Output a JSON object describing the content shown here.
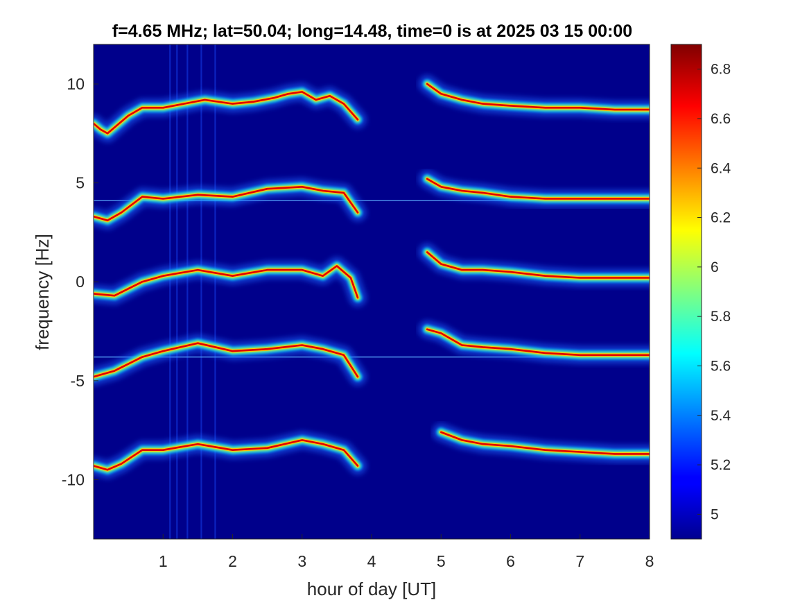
{
  "chart_data": {
    "type": "heatmap",
    "title": "f=4.65 MHz;  lat=50.04; long=14.48, time=0 is at 2025 03 15 00:00",
    "xlabel": "hour of day [UT]",
    "ylabel": "frequency [Hz]",
    "xlim": [
      0,
      8
    ],
    "ylim": [
      -13,
      12
    ],
    "x_ticks": [
      1,
      2,
      3,
      4,
      5,
      6,
      7,
      8
    ],
    "x_tick_labels": [
      "1",
      "2",
      "3",
      "4",
      "5",
      "6",
      "7",
      "8"
    ],
    "y_ticks": [
      -10,
      -5,
      0,
      5,
      10
    ],
    "y_tick_labels": [
      "-10",
      "-5",
      "0",
      "5",
      "10"
    ],
    "colorbar": {
      "colormap": "jet",
      "clim": [
        4.9,
        6.9
      ],
      "ticks": [
        5,
        5.2,
        5.4,
        5.6,
        5.8,
        6,
        6.2,
        6.4,
        6.6,
        6.8
      ],
      "tick_labels": [
        "5",
        "5.2",
        "5.4",
        "5.6",
        "5.8",
        "6",
        "6.2",
        "6.4",
        "6.6",
        "6.8"
      ]
    },
    "background_color": "#00008b",
    "traces": [
      {
        "segments": [
          {
            "x": [
              0,
              0.1,
              0.2,
              0.3,
              0.5,
              0.7,
              1.0,
              1.3,
              1.6,
              2.0,
              2.3,
              2.6,
              2.8,
              3.0,
              3.2,
              3.4,
              3.6,
              3.8
            ],
            "y": [
              8.0,
              7.7,
              7.5,
              7.8,
              8.4,
              8.8,
              8.8,
              9.0,
              9.2,
              9.0,
              9.1,
              9.3,
              9.5,
              9.6,
              9.2,
              9.4,
              9.0,
              8.2
            ]
          },
          {
            "x": [
              4.8,
              5.0,
              5.3,
              5.6,
              6.0,
              6.5,
              7.0,
              7.5,
              8.0
            ],
            "y": [
              10.0,
              9.5,
              9.2,
              9.0,
              8.9,
              8.8,
              8.8,
              8.7,
              8.7
            ]
          }
        ]
      },
      {
        "segments": [
          {
            "x": [
              0,
              0.2,
              0.4,
              0.7,
              1.0,
              1.5,
              2.0,
              2.5,
              3.0,
              3.3,
              3.6,
              3.8
            ],
            "y": [
              3.3,
              3.1,
              3.5,
              4.3,
              4.2,
              4.4,
              4.3,
              4.7,
              4.8,
              4.6,
              4.5,
              3.5
            ]
          },
          {
            "x": [
              4.8,
              5.0,
              5.3,
              5.6,
              6.0,
              6.5,
              7.0,
              7.5,
              8.0
            ],
            "y": [
              5.2,
              4.8,
              4.6,
              4.5,
              4.3,
              4.2,
              4.2,
              4.2,
              4.2
            ]
          }
        ]
      },
      {
        "segments": [
          {
            "x": [
              0,
              0.3,
              0.7,
              1.0,
              1.5,
              2.0,
              2.5,
              3.0,
              3.3,
              3.5,
              3.7,
              3.8
            ],
            "y": [
              -0.6,
              -0.7,
              0.0,
              0.3,
              0.6,
              0.3,
              0.6,
              0.6,
              0.3,
              0.8,
              0.2,
              -0.8
            ]
          },
          {
            "x": [
              4.8,
              5.0,
              5.3,
              5.6,
              6.0,
              6.5,
              7.0,
              7.5,
              8.0
            ],
            "y": [
              1.5,
              0.9,
              0.6,
              0.6,
              0.5,
              0.3,
              0.2,
              0.2,
              0.2
            ]
          }
        ]
      },
      {
        "segments": [
          {
            "x": [
              0,
              0.3,
              0.7,
              1.0,
              1.5,
              2.0,
              2.5,
              3.0,
              3.3,
              3.6,
              3.8
            ],
            "y": [
              -4.8,
              -4.5,
              -3.8,
              -3.5,
              -3.1,
              -3.5,
              -3.4,
              -3.2,
              -3.4,
              -3.7,
              -4.8
            ]
          },
          {
            "x": [
              4.8,
              5.0,
              5.3,
              5.6,
              6.0,
              6.5,
              7.0,
              7.5,
              8.0
            ],
            "y": [
              -2.4,
              -2.6,
              -3.2,
              -3.3,
              -3.4,
              -3.6,
              -3.7,
              -3.7,
              -3.7
            ]
          }
        ]
      },
      {
        "segments": [
          {
            "x": [
              0,
              0.2,
              0.4,
              0.7,
              1.0,
              1.5,
              2.0,
              2.5,
              3.0,
              3.3,
              3.6,
              3.8
            ],
            "y": [
              -9.3,
              -9.5,
              -9.2,
              -8.5,
              -8.5,
              -8.2,
              -8.5,
              -8.4,
              -8.0,
              -8.2,
              -8.5,
              -9.3
            ]
          },
          {
            "x": [
              5.0,
              5.3,
              5.6,
              6.0,
              6.5,
              7.0,
              7.5,
              8.0
            ],
            "y": [
              -7.6,
              -8.0,
              -8.2,
              -8.3,
              -8.5,
              -8.6,
              -8.7,
              -8.7
            ]
          }
        ]
      }
    ],
    "horizontal_lines": [
      {
        "y": 4.1,
        "x": [
          0,
          8
        ]
      },
      {
        "y": -3.8,
        "x": [
          0,
          8
        ]
      }
    ],
    "vertical_streaks": [
      1.1,
      1.2,
      1.35,
      1.55,
      1.75
    ]
  }
}
